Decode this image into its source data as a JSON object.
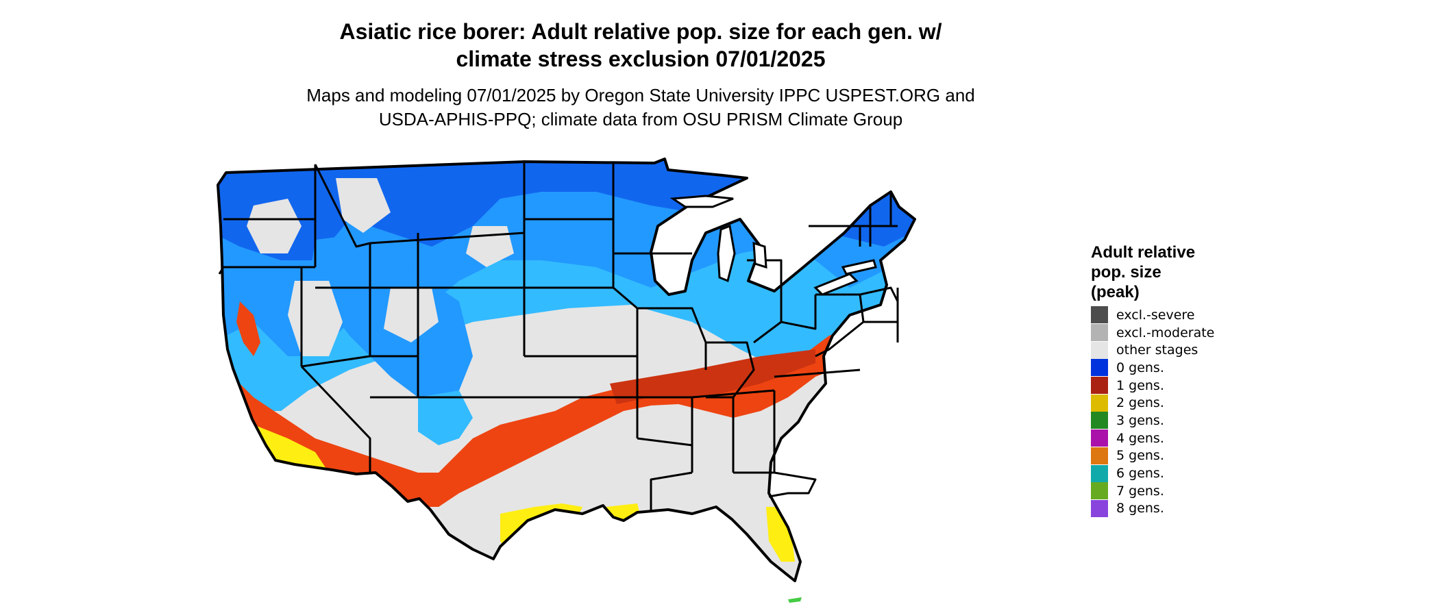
{
  "title": {
    "line1": "Asiatic rice borer: Adult relative pop. size for each gen. w/",
    "line2": "climate stress exclusion 07/01/2025"
  },
  "subtitle": {
    "line1": "Maps and modeling 07/01/2025 by Oregon State University IPPC USPEST.ORG and",
    "line2": "USDA-APHIS-PPQ; climate data from OSU PRISM Climate Group"
  },
  "legend": {
    "title_line1": "Adult relative",
    "title_line2": "pop. size",
    "title_line3": "(peak)",
    "items": [
      {
        "label": "excl.-severe",
        "color": "#4d4d4d"
      },
      {
        "label": "excl.-moderate",
        "color": "#b3b3b3"
      },
      {
        "label": "other stages",
        "color": "#e5e5e5"
      },
      {
        "label": "0 gens.",
        "color": "#0033dd"
      },
      {
        "label": "1 gens.",
        "color": "#aa2211"
      },
      {
        "label": "2 gens.",
        "color": "#ddbb00"
      },
      {
        "label": "3 gens.",
        "color": "#228822"
      },
      {
        "label": "4 gens.",
        "color": "#aa11aa"
      },
      {
        "label": "5 gens.",
        "color": "#dd7711"
      },
      {
        "label": "6 gens.",
        "color": "#11aaaa"
      },
      {
        "label": "7 gens.",
        "color": "#66aa22"
      },
      {
        "label": "8 gens.",
        "color": "#8844dd"
      }
    ]
  },
  "map_colors": {
    "other_stages": "#e5e5e5",
    "dark_blue": "#1166ee",
    "mid_blue": "#2299ff",
    "light_blue": "#33bbff",
    "red_orange": "#ee4411",
    "dark_red": "#cc3311",
    "yellow": "#ffee11",
    "green": "#44cc44",
    "border": "#000000"
  }
}
